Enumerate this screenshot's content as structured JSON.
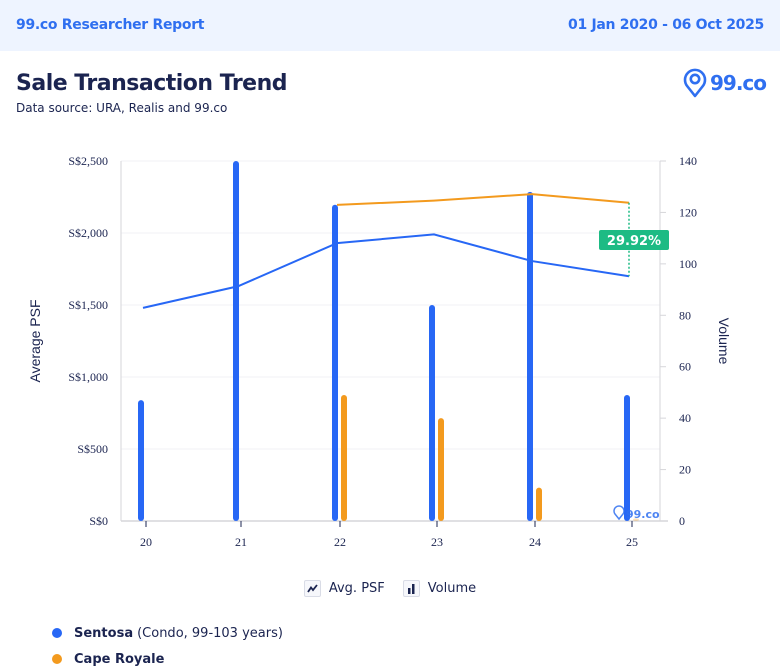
{
  "header": {
    "report_name": "99.co Researcher Report",
    "date_range": "01 Jan 2020 - 06 Oct 2025"
  },
  "title": "Sale Transaction Trend",
  "subtitle": "Data source: URA, Realis and 99.co",
  "brand": {
    "logo_text": "99.co",
    "icon": "location-pin-icon"
  },
  "colors": {
    "sentosa": "#2767f5",
    "cape_royale": "#f39a1e",
    "diff_badge": "#1dbb84",
    "text": "#1b2450",
    "accent": "#2f6ff0"
  },
  "legend_types": [
    {
      "label": "Avg. PSF",
      "icon": "line-chart-icon"
    },
    {
      "label": "Volume",
      "icon": "bar-chart-icon"
    }
  ],
  "series_legend": [
    {
      "name": "Sentosa",
      "desc": "(Condo, 99-103 years)",
      "color": "#2767f5"
    },
    {
      "name": "Cape Royale",
      "desc": "",
      "color": "#f39a1e"
    }
  ],
  "chart_data": {
    "type": "bar+line",
    "categories": [
      "20",
      "21",
      "22",
      "23",
      "24",
      "25"
    ],
    "ylabel_left": "Average PSF",
    "ylabel_right": "Volume",
    "ylim_left": [
      0,
      2500
    ],
    "ylim_right": [
      0,
      140
    ],
    "yticks_left": [
      "S$0",
      "S$500",
      "S$1,000",
      "S$1,500",
      "S$2,000",
      "S$2,500"
    ],
    "yticks_right": [
      "0",
      "20",
      "40",
      "60",
      "80",
      "100",
      "120",
      "140"
    ],
    "grid": true,
    "series": [
      {
        "name": "Sentosa",
        "kind": "psf",
        "values": [
          1480,
          1630,
          1930,
          1990,
          1805,
          1700
        ]
      },
      {
        "name": "Cape Royale",
        "kind": "psf",
        "values": [
          null,
          null,
          2195,
          2225,
          2270,
          2210
        ]
      },
      {
        "name": "Sentosa",
        "kind": "volume",
        "values": [
          47,
          140,
          123,
          84,
          128,
          49
        ]
      },
      {
        "name": "Cape Royale",
        "kind": "volume",
        "values": [
          0,
          0,
          49,
          40,
          13,
          1
        ]
      }
    ],
    "annotation": {
      "label": "29.92%",
      "category": "25"
    },
    "watermark": "99.co"
  }
}
